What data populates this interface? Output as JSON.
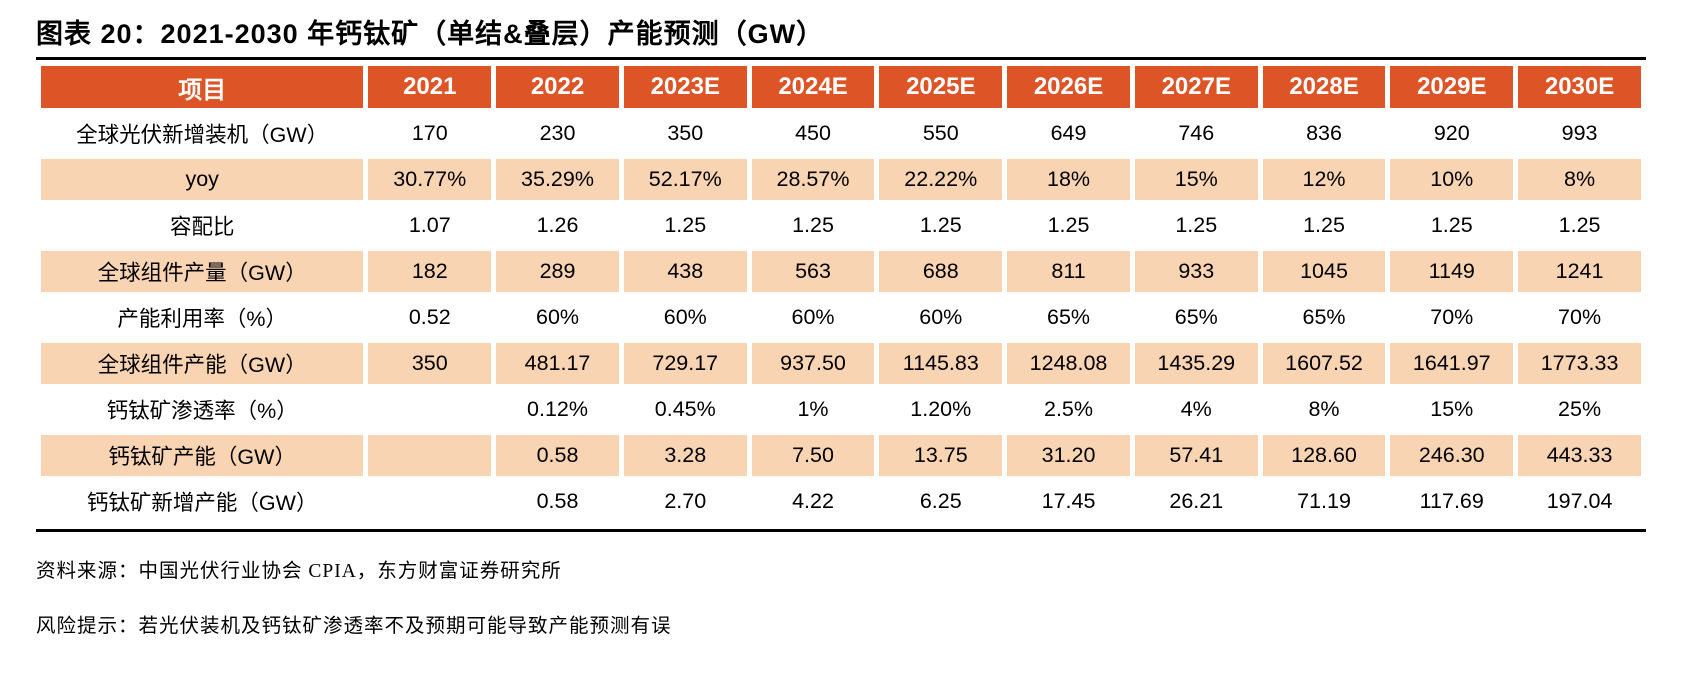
{
  "title": "图表 20：2021-2030 年钙钛矿（单结&叠层）产能预测（GW）",
  "colors": {
    "header_bg": "#DD5427",
    "row_alt_bg": "#F9D4B3",
    "header_text": "#FFFFFF",
    "body_text": "#000000"
  },
  "chart_data": {
    "type": "table",
    "columns": [
      "项目",
      "2021",
      "2022",
      "2023E",
      "2024E",
      "2025E",
      "2026E",
      "2027E",
      "2028E",
      "2029E",
      "2030E"
    ],
    "rows": [
      {
        "label": "全球光伏新增装机（GW）",
        "values": [
          "170",
          "230",
          "350",
          "450",
          "550",
          "649",
          "746",
          "836",
          "920",
          "993"
        ]
      },
      {
        "label": "yoy",
        "values": [
          "30.77%",
          "35.29%",
          "52.17%",
          "28.57%",
          "22.22%",
          "18%",
          "15%",
          "12%",
          "10%",
          "8%"
        ]
      },
      {
        "label": "容配比",
        "values": [
          "1.07",
          "1.26",
          "1.25",
          "1.25",
          "1.25",
          "1.25",
          "1.25",
          "1.25",
          "1.25",
          "1.25"
        ]
      },
      {
        "label": "全球组件产量（GW）",
        "values": [
          "182",
          "289",
          "438",
          "563",
          "688",
          "811",
          "933",
          "1045",
          "1149",
          "1241"
        ]
      },
      {
        "label": "产能利用率（%）",
        "values": [
          "0.52",
          "60%",
          "60%",
          "60%",
          "60%",
          "65%",
          "65%",
          "65%",
          "70%",
          "70%"
        ]
      },
      {
        "label": "全球组件产能（GW）",
        "values": [
          "350",
          "481.17",
          "729.17",
          "937.50",
          "1145.83",
          "1248.08",
          "1435.29",
          "1607.52",
          "1641.97",
          "1773.33"
        ]
      },
      {
        "label": "钙钛矿渗透率（%）",
        "values": [
          "",
          "0.12%",
          "0.45%",
          "1%",
          "1.20%",
          "2.5%",
          "4%",
          "8%",
          "15%",
          "25%"
        ]
      },
      {
        "label": "钙钛矿产能（GW）",
        "values": [
          "",
          "0.58",
          "3.28",
          "7.50",
          "13.75",
          "31.20",
          "57.41",
          "128.60",
          "246.30",
          "443.33"
        ]
      },
      {
        "label": "钙钛矿新增产能（GW）",
        "values": [
          "",
          "0.58",
          "2.70",
          "4.22",
          "6.25",
          "17.45",
          "26.21",
          "71.19",
          "117.69",
          "197.04"
        ]
      }
    ]
  },
  "footer": {
    "source": "资料来源：中国光伏行业协会 CPIA，东方财富证券研究所",
    "risk": "风险提示：若光伏装机及钙钛矿渗透率不及预期可能导致产能预测有误"
  }
}
